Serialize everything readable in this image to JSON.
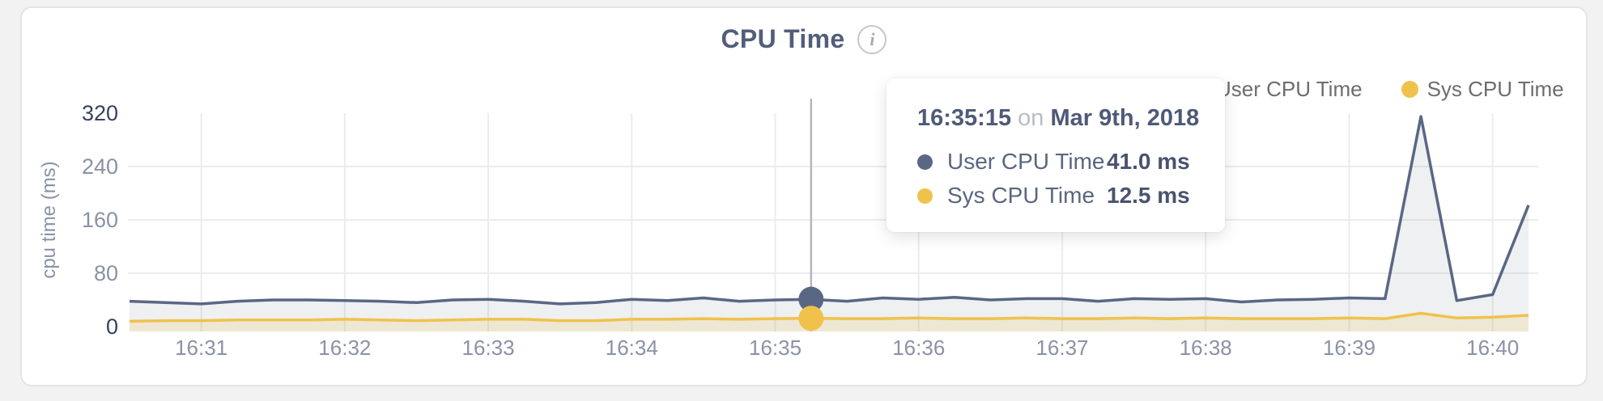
{
  "header": {
    "title": "CPU Time"
  },
  "icons": {
    "info": "i"
  },
  "legend": {
    "items": [
      {
        "label": "User CPU Time",
        "color": "#5a6784"
      },
      {
        "label": "Sys CPU Time",
        "color": "#f0c24c"
      }
    ]
  },
  "tooltip": {
    "time": "16:35:15",
    "conjunction": "on",
    "date": "Mar 9th, 2018",
    "rows": [
      {
        "label": "User CPU Time",
        "value": "41.0 ms",
        "color": "#5a6784"
      },
      {
        "label": "Sys CPU Time",
        "value": "12.5 ms",
        "color": "#f0c24c"
      }
    ]
  },
  "colors": {
    "grid": "#ececeb",
    "crosshair": "#b3b6bc",
    "tick": "#8a92a6",
    "tick_emphasis": "#36425f",
    "axis_title": "#8a92a6"
  },
  "chart_data": {
    "type": "area",
    "title": "CPU Time",
    "ylabel": "cpu time (ms)",
    "ylim": [
      0,
      320
    ],
    "y_ticks": [
      0,
      80,
      160,
      240,
      320
    ],
    "x_ticks": [
      "16:31",
      "16:32",
      "16:33",
      "16:34",
      "16:35",
      "16:36",
      "16:37",
      "16:38",
      "16:39",
      "16:40"
    ],
    "legend_position": "top-right",
    "grid": true,
    "x": [
      "16:30:30",
      "16:30:45",
      "16:31:00",
      "16:31:15",
      "16:31:30",
      "16:31:45",
      "16:32:00",
      "16:32:15",
      "16:32:30",
      "16:32:45",
      "16:33:00",
      "16:33:15",
      "16:33:30",
      "16:33:45",
      "16:34:00",
      "16:34:15",
      "16:34:30",
      "16:34:45",
      "16:35:00",
      "16:35:15",
      "16:35:30",
      "16:35:45",
      "16:36:00",
      "16:36:15",
      "16:36:30",
      "16:36:45",
      "16:37:00",
      "16:37:15",
      "16:37:30",
      "16:37:45",
      "16:38:00",
      "16:38:15",
      "16:38:30",
      "16:38:45",
      "16:39:00",
      "16:39:15",
      "16:39:30",
      "16:39:45",
      "16:40:00",
      "16:40:15"
    ],
    "series": [
      {
        "name": "User CPU Time",
        "color": "#5a6784",
        "fill": "rgba(90,103,132,0.10)",
        "values": [
          38,
          36,
          34,
          38,
          40,
          40,
          39,
          38,
          36,
          40,
          41,
          38,
          34,
          36,
          41,
          39,
          43,
          38,
          40,
          41,
          38,
          43,
          41,
          44,
          40,
          42,
          42,
          38,
          42,
          41,
          42,
          37,
          40,
          41,
          43,
          42,
          315,
          39,
          48,
          182
        ]
      },
      {
        "name": "Sys CPU Time",
        "color": "#f0c24c",
        "fill": "rgba(240,194,76,0.18)",
        "values": [
          8,
          9,
          9,
          10,
          10,
          10,
          11,
          10,
          9,
          10,
          11,
          11,
          9,
          9,
          11,
          11,
          12,
          11,
          12,
          12.5,
          12,
          12,
          13,
          12,
          12,
          13,
          12,
          12,
          13,
          12,
          13,
          12,
          12,
          12,
          13,
          12,
          20,
          13,
          14,
          17
        ]
      }
    ],
    "highlight": {
      "x": "16:35:15",
      "values": [
        41.0,
        12.5
      ]
    }
  }
}
